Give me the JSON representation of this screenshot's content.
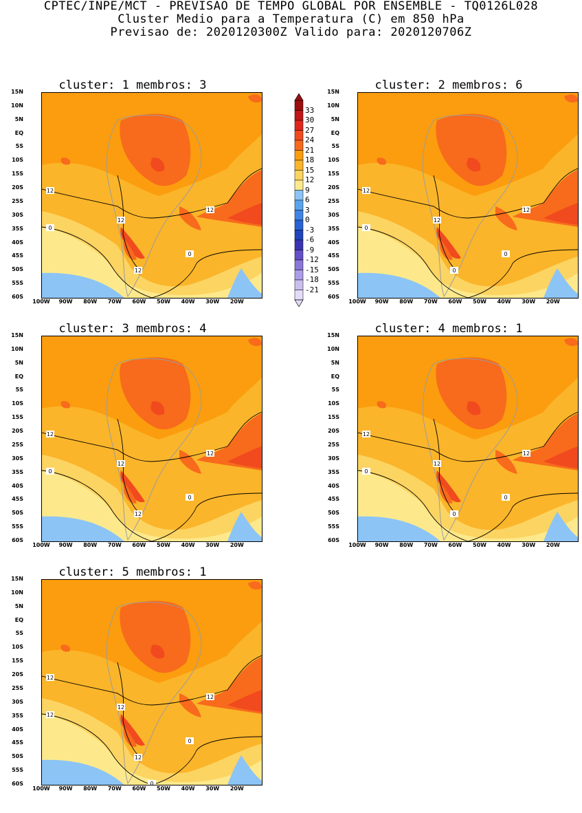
{
  "header": {
    "line1": "CPTEC/INPE/MCT - PREVISAO DE TEMPO GLOBAL POR ENSEMBLE - TQ0126L028",
    "line2": "Cluster Medio para a Temperatura (C) em 850 hPa",
    "line3": "Previsao de: 2020120300Z   Valido para: 2020120706Z"
  },
  "panels": [
    {
      "title": "cluster: 1   membros: 3",
      "contour_labels": [
        "12",
        "12",
        "12",
        "12",
        "0",
        "0"
      ]
    },
    {
      "title": "cluster: 2   membros: 6",
      "contour_labels": [
        "12",
        "12",
        "12",
        "0",
        "0",
        "0"
      ]
    },
    {
      "title": "cluster: 3   membros: 4",
      "contour_labels": [
        "12",
        "12",
        "12",
        "12",
        "0",
        "0"
      ]
    },
    {
      "title": "cluster: 4   membros: 1",
      "contour_labels": [
        "12",
        "12",
        "12",
        "0",
        "0",
        "0"
      ]
    },
    {
      "title": "cluster: 5   membros: 1",
      "contour_labels": [
        "12",
        "12",
        "12",
        "12",
        "12",
        "0",
        "0"
      ]
    }
  ],
  "axes": {
    "lat_labels": [
      "15N",
      "10N",
      "5N",
      "EQ",
      "5S",
      "10S",
      "15S",
      "20S",
      "25S",
      "30S",
      "35S",
      "40S",
      "45S",
      "50S",
      "55S",
      "60S"
    ],
    "lon_labels": [
      "100W",
      "90W",
      "80W",
      "70W",
      "60W",
      "50W",
      "40W",
      "30W",
      "20W"
    ]
  },
  "colorbar": {
    "levels": [
      "33",
      "30",
      "27",
      "24",
      "21",
      "18",
      "15",
      "12",
      "9",
      "6",
      "3",
      "0",
      "-3",
      "-6",
      "-9",
      "-12",
      "-15",
      "-18",
      "-21"
    ],
    "colors": [
      "#9b0f0f",
      "#c01616",
      "#e0261c",
      "#f04a1e",
      "#f86a1c",
      "#fb9d0e",
      "#fbb52a",
      "#fcd462",
      "#fde98c",
      "#8cc4f5",
      "#5aa4ee",
      "#3f85e6",
      "#2863d6",
      "#1f45be",
      "#3a34b4",
      "#6450c9",
      "#8b76da",
      "#ad9ce6",
      "#cbbff0",
      "#e3dcf8"
    ]
  }
}
